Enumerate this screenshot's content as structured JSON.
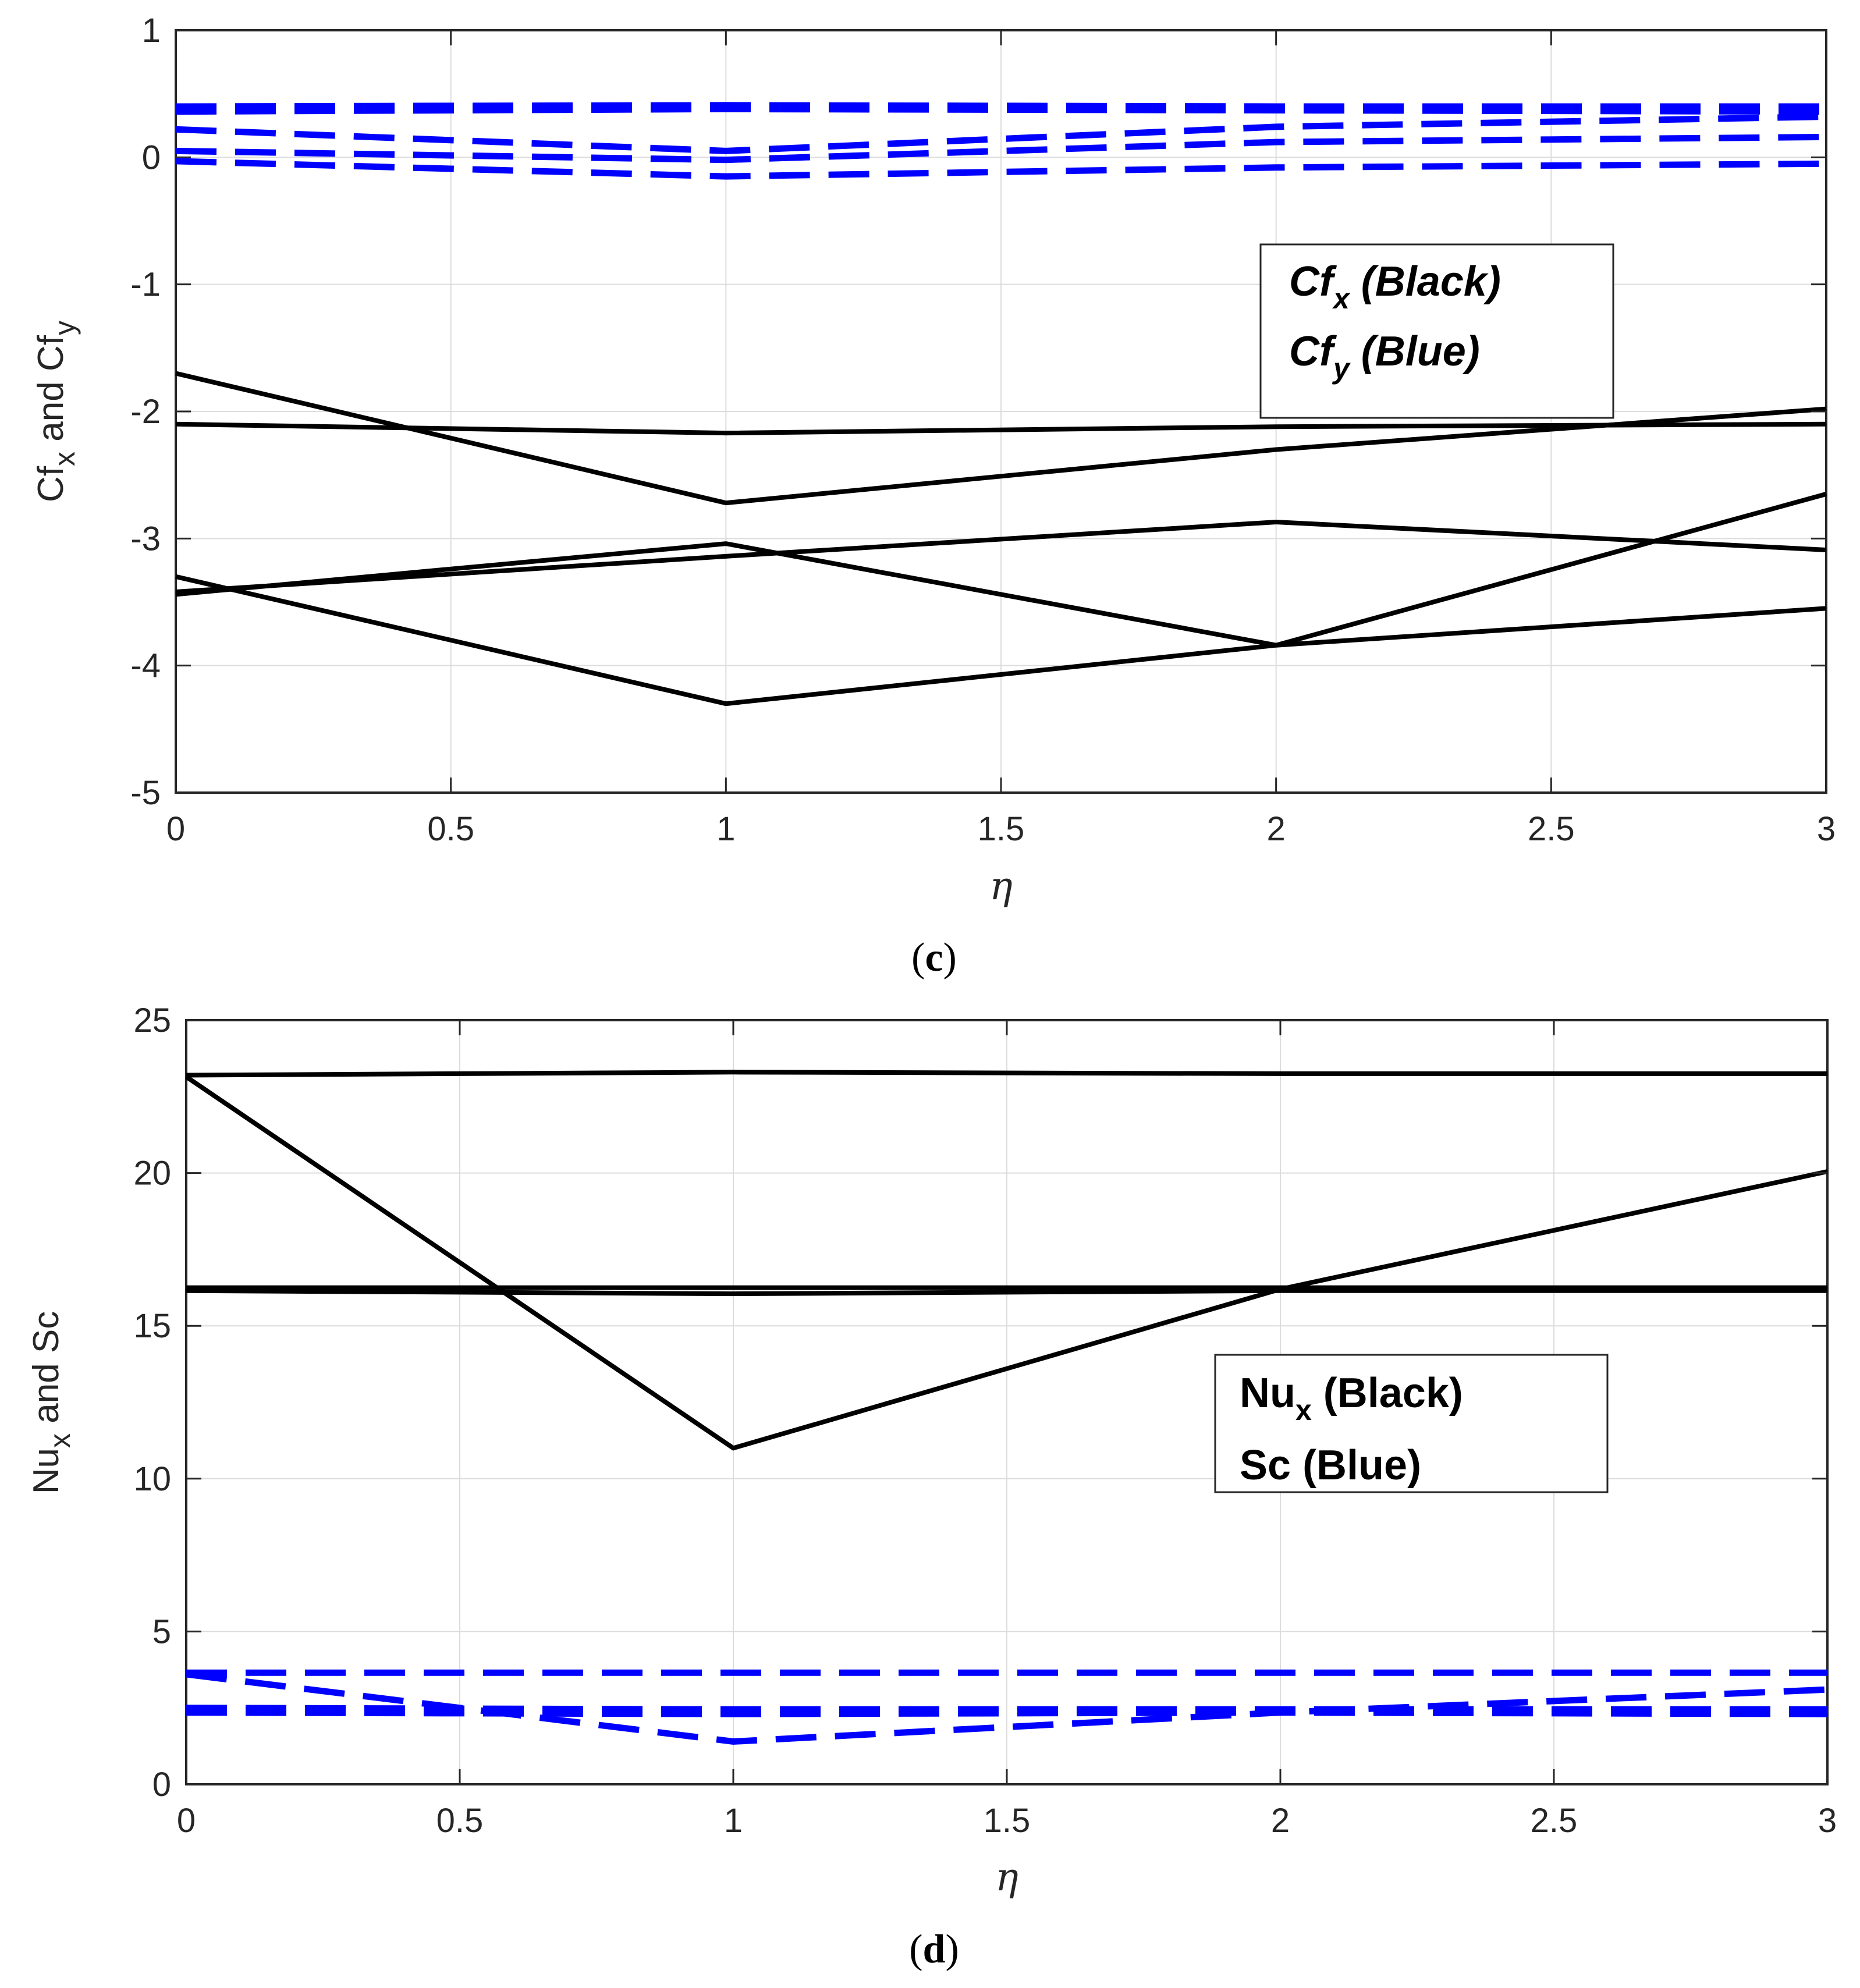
{
  "colors": {
    "black_series": "#000000",
    "blue_series": "#0000ff",
    "grid": "#dcdcdc",
    "axis": "#262626"
  },
  "chart_data": [
    {
      "id": "c",
      "type": "line",
      "caption": {
        "open": "(",
        "letter": "c",
        "close": ")"
      },
      "xlabel": "η",
      "ylabel": {
        "main1": "Cf",
        "sub1": "x",
        "mid": " and Cf",
        "sub2": "y"
      },
      "xlim": [
        0,
        3
      ],
      "ylim": [
        -5,
        1
      ],
      "xticks": [
        0,
        0.5,
        1,
        1.5,
        2,
        2.5,
        3
      ],
      "xtick_labels": [
        "0",
        "0.5",
        "1",
        "1.5",
        "2",
        "2.5",
        "3"
      ],
      "yticks": [
        1,
        0,
        -1,
        -2,
        -3,
        -4,
        -5
      ],
      "ytick_labels": [
        "1",
        "0",
        "-1",
        "-2",
        "-3",
        "-4",
        "-5"
      ],
      "grid": true,
      "legend": {
        "position": "center-right",
        "entries": [
          {
            "main": "Cf",
            "sub": "x",
            "rest": " (Black)"
          },
          {
            "main": "Cf",
            "sub": "y",
            "rest": " (Blue)"
          }
        ]
      },
      "x": [
        0,
        1,
        2,
        3
      ],
      "series": [
        {
          "name": "Cfx-1",
          "color": "black",
          "style": "solid",
          "values": [
            -2.1,
            -2.17,
            -2.12,
            -2.1
          ]
        },
        {
          "name": "Cfx-2",
          "color": "black",
          "style": "solid",
          "values": [
            -1.7,
            -2.72,
            -2.3,
            -1.98
          ]
        },
        {
          "name": "Cfx-3",
          "color": "black",
          "style": "solid",
          "values": [
            -3.42,
            -3.14,
            -2.87,
            -3.09
          ]
        },
        {
          "name": "Cfx-4",
          "color": "black",
          "style": "solid",
          "values": [
            -3.44,
            -3.04,
            -3.84,
            -2.65
          ]
        },
        {
          "name": "Cfx-5",
          "color": "black",
          "style": "solid",
          "values": [
            -3.3,
            -4.3,
            -3.84,
            -3.55
          ]
        },
        {
          "name": "Cfy-1",
          "color": "blue",
          "style": "dashed",
          "values": [
            0.4,
            0.41,
            0.4,
            0.4
          ]
        },
        {
          "name": "Cfy-2",
          "color": "blue",
          "style": "dashed",
          "values": [
            0.36,
            0.38,
            0.37,
            0.36
          ]
        },
        {
          "name": "Cfy-3",
          "color": "blue",
          "style": "dashed",
          "values": [
            0.22,
            0.05,
            0.24,
            0.32
          ]
        },
        {
          "name": "Cfy-4",
          "color": "blue",
          "style": "dashed",
          "values": [
            0.05,
            -0.02,
            0.12,
            0.16
          ]
        },
        {
          "name": "Cfy-5",
          "color": "blue",
          "style": "dashed",
          "values": [
            -0.03,
            -0.15,
            -0.08,
            -0.05
          ]
        }
      ]
    },
    {
      "id": "d",
      "type": "line",
      "caption": {
        "open": "(",
        "letter": "d",
        "close": ")"
      },
      "xlabel": "η",
      "ylabel": {
        "main1": "Nu",
        "sub1": "x",
        "mid": " and Sc",
        "sub2": ""
      },
      "xlim": [
        0,
        3
      ],
      "ylim": [
        0,
        25
      ],
      "xticks": [
        0,
        0.5,
        1,
        1.5,
        2,
        2.5,
        3
      ],
      "xtick_labels": [
        "0",
        "0.5",
        "1",
        "1.5",
        "2",
        "2.5",
        "3"
      ],
      "yticks": [
        25,
        20,
        15,
        10,
        5,
        0
      ],
      "ytick_labels": [
        "25",
        "20",
        "15",
        "10",
        "5",
        "0"
      ],
      "grid": true,
      "legend": {
        "position": "center-right",
        "entries": [
          {
            "main": "Nu",
            "sub": "x",
            "rest": " (Black)"
          },
          {
            "main": "Sc (Blue)",
            "sub": "",
            "rest": ""
          }
        ]
      },
      "x": [
        0,
        1,
        2,
        3
      ],
      "series": [
        {
          "name": "Nux-1",
          "color": "black",
          "style": "solid",
          "values": [
            23.2,
            23.3,
            23.25,
            23.25
          ]
        },
        {
          "name": "Nux-2",
          "color": "black",
          "style": "solid",
          "values": [
            23.15,
            11.0,
            16.2,
            20.05
          ]
        },
        {
          "name": "Nux-3",
          "color": "black",
          "style": "solid",
          "values": [
            16.25,
            16.25,
            16.25,
            16.25
          ]
        },
        {
          "name": "Nux-4",
          "color": "black",
          "style": "solid",
          "values": [
            16.15,
            16.05,
            16.15,
            16.15
          ]
        },
        {
          "name": "Sc-1",
          "color": "blue",
          "style": "dashed",
          "values": [
            3.65,
            3.65,
            3.65,
            3.65
          ]
        },
        {
          "name": "Sc-2",
          "color": "blue",
          "style": "dashed",
          "values": [
            3.6,
            1.4,
            2.35,
            3.1
          ]
        },
        {
          "name": "Sc-3",
          "color": "blue",
          "style": "dashed",
          "values": [
            2.5,
            2.45,
            2.45,
            2.45
          ]
        },
        {
          "name": "Sc-4",
          "color": "blue",
          "style": "dashed",
          "values": [
            2.35,
            2.3,
            2.35,
            2.3
          ]
        }
      ]
    }
  ]
}
